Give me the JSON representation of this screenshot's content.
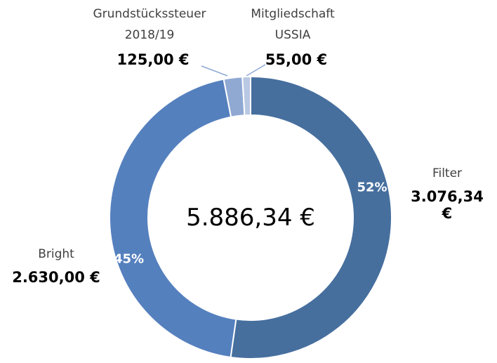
{
  "chart_data": {
    "type": "donut",
    "categories": [
      "Filter",
      "Bright",
      "Grundstückssteuer\n2018/19",
      "Mitgliedschaft\nUSSIA"
    ],
    "values": [
      3076.34,
      2630.0,
      125.0,
      55.0
    ],
    "value_labels": [
      "3.076,34 €",
      "2.630,00 €",
      "125,00 €",
      "55,00 €"
    ],
    "percent_labels": [
      "52%",
      "45%"
    ],
    "colors": [
      "#466f9e",
      "#5580be",
      "#8fa9d3",
      "#b9c8e3"
    ],
    "center_label": "5.886,34 €"
  }
}
